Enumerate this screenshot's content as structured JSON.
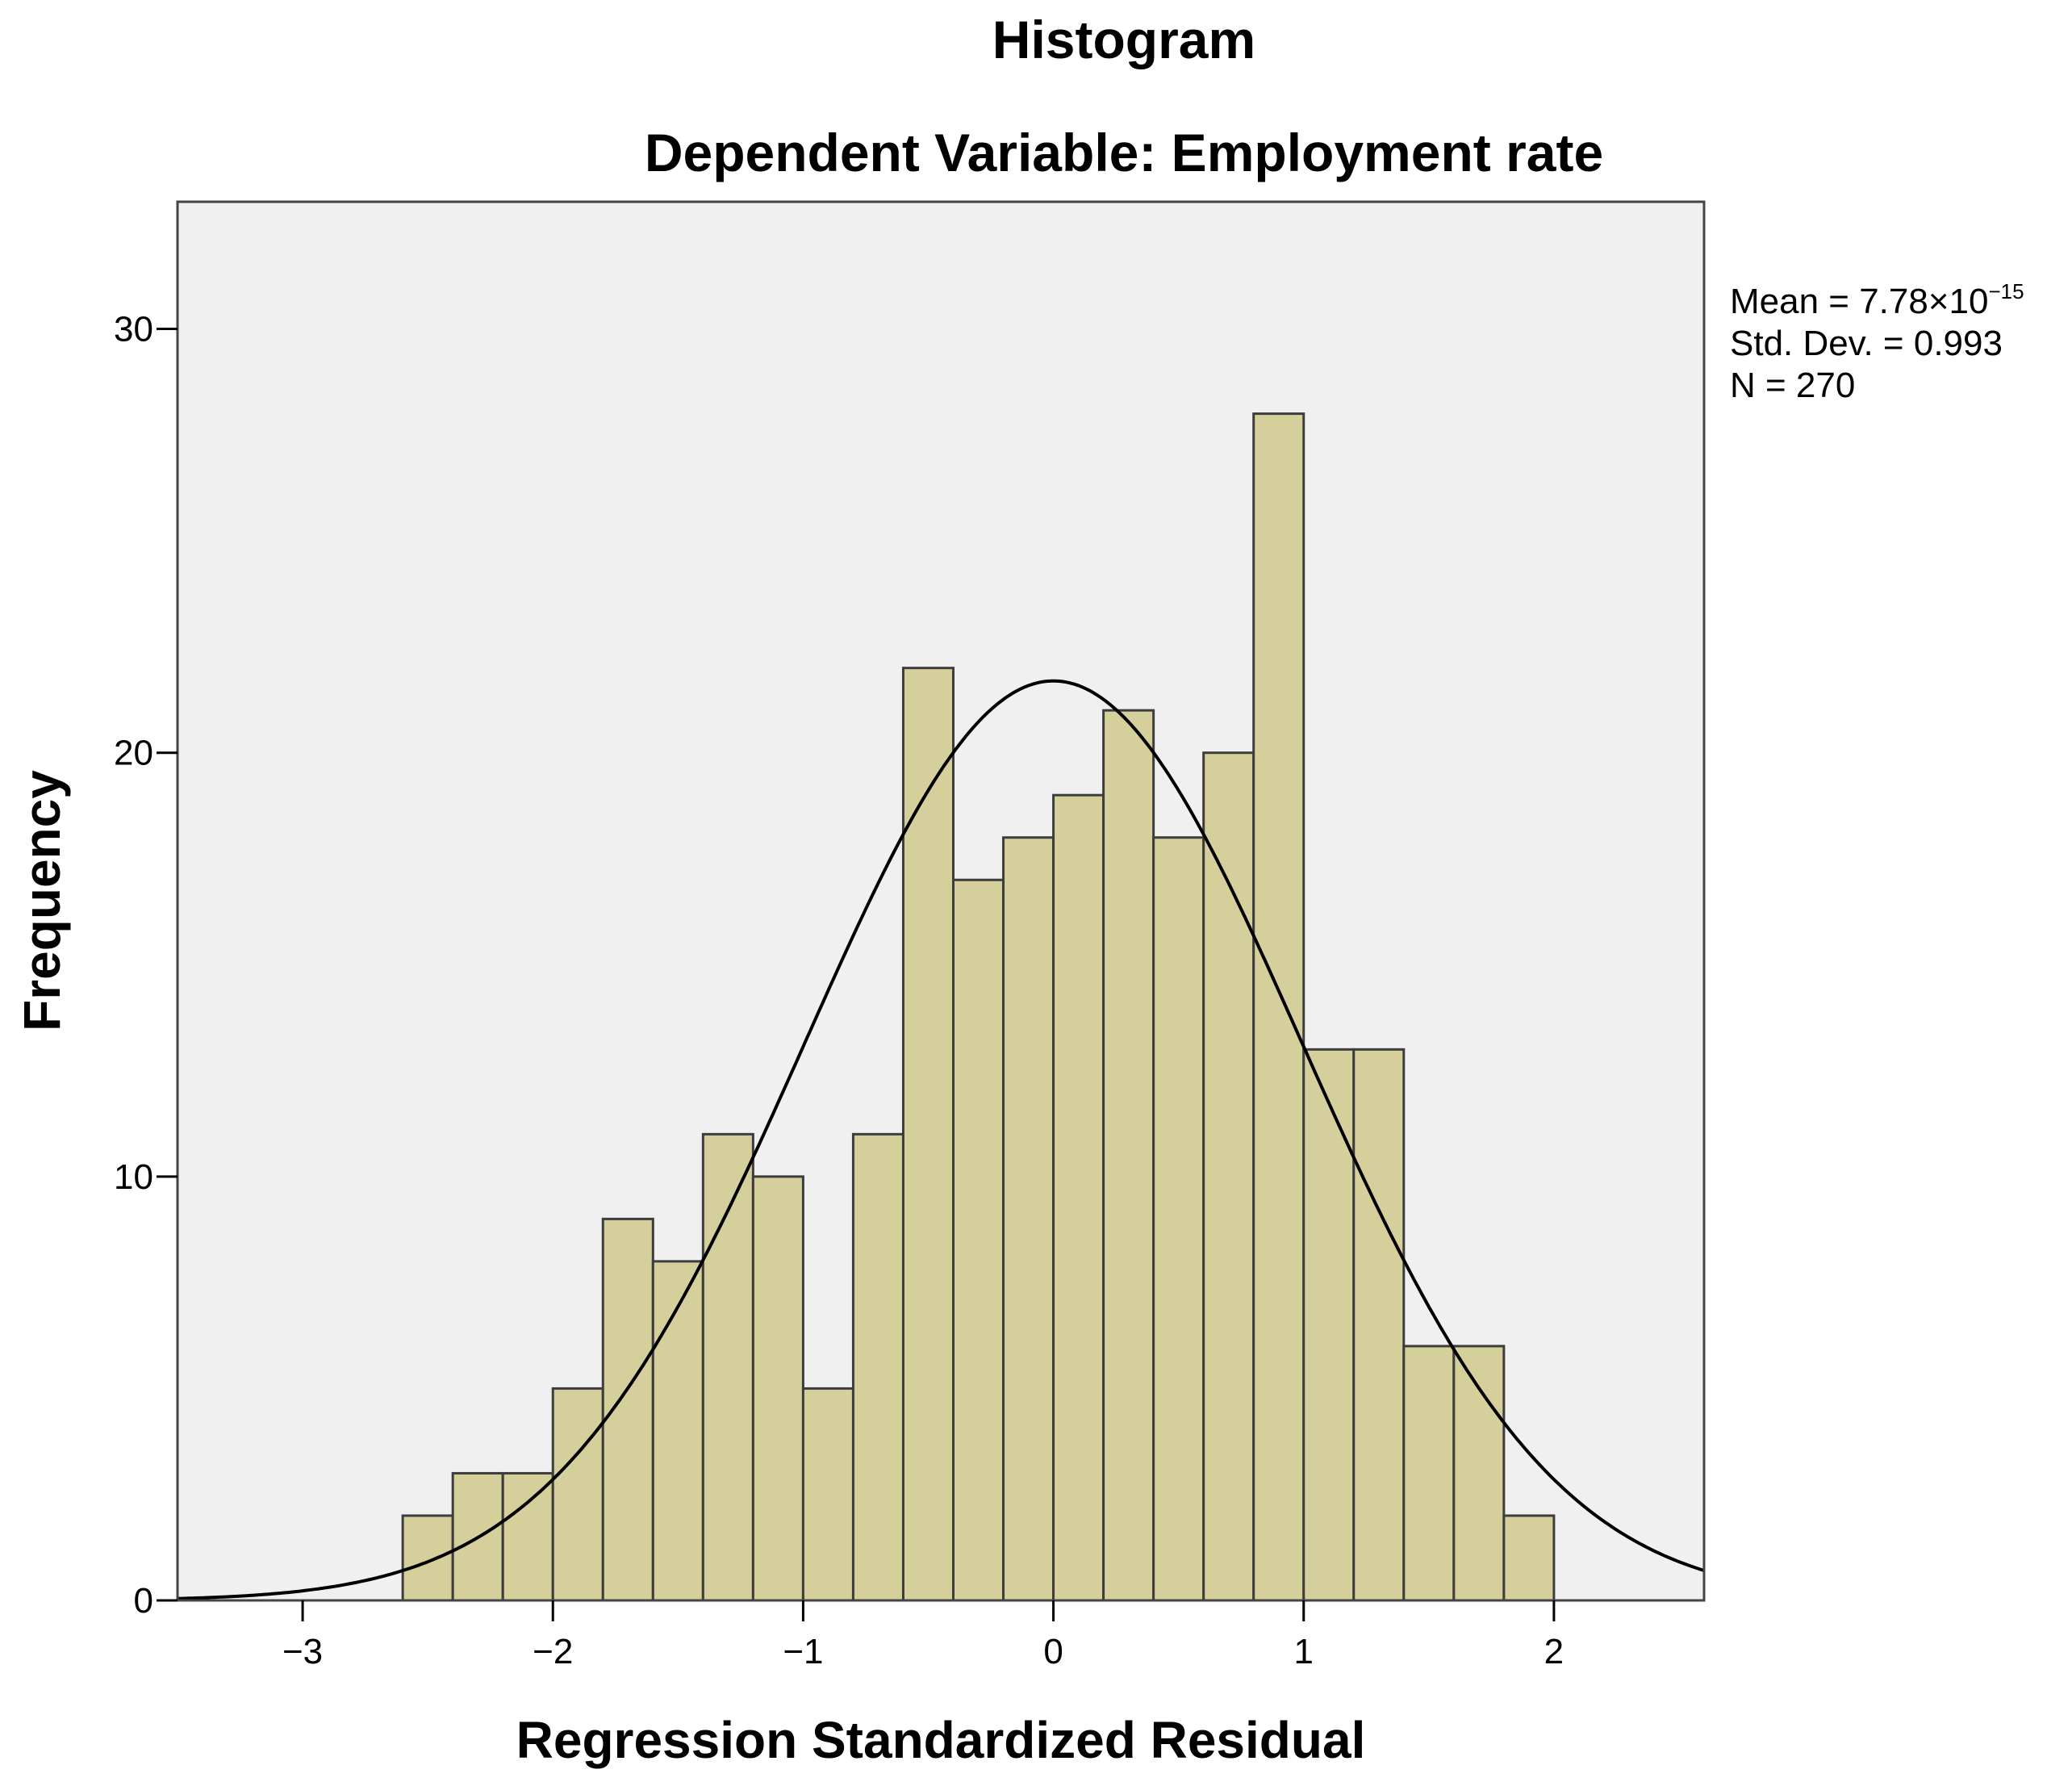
{
  "chart_data": {
    "type": "bar",
    "title": "Histogram",
    "subtitle": "Dependent Variable: Employment rate",
    "xlabel": "Regression Standardized Residual",
    "ylabel": "Frequency",
    "xlim": [
      -3.5,
      2.6
    ],
    "ylim": [
      0,
      33
    ],
    "x_ticks": [
      -3,
      -2,
      -1,
      0,
      1,
      2
    ],
    "x_tick_labels": [
      "−3",
      "−2",
      "−1",
      "0",
      "1",
      "2"
    ],
    "y_ticks": [
      0,
      10,
      20,
      30
    ],
    "y_tick_labels": [
      "0",
      "10",
      "20",
      "30"
    ],
    "bin_width": 0.2,
    "bins": [
      {
        "x0": -2.6,
        "count": 2
      },
      {
        "x0": -2.4,
        "count": 3
      },
      {
        "x0": -2.2,
        "count": 3
      },
      {
        "x0": -2.0,
        "count": 5
      },
      {
        "x0": -1.8,
        "count": 9
      },
      {
        "x0": -1.6,
        "count": 8
      },
      {
        "x0": -1.4,
        "count": 11
      },
      {
        "x0": -1.2,
        "count": 10
      },
      {
        "x0": -1.0,
        "count": 5
      },
      {
        "x0": -0.8,
        "count": 11
      },
      {
        "x0": -0.6,
        "count": 22
      },
      {
        "x0": -0.4,
        "count": 17
      },
      {
        "x0": -0.2,
        "count": 18
      },
      {
        "x0": 0.0,
        "count": 19
      },
      {
        "x0": 0.2,
        "count": 21
      },
      {
        "x0": 0.4,
        "count": 18
      },
      {
        "x0": 0.6,
        "count": 20
      },
      {
        "x0": 0.8,
        "count": 28
      },
      {
        "x0": 1.0,
        "count": 13
      },
      {
        "x0": 1.2,
        "count": 13
      },
      {
        "x0": 1.4,
        "count": 6
      },
      {
        "x0": 1.6,
        "count": 6
      },
      {
        "x0": 1.8,
        "count": 2
      }
    ],
    "normal_curve": {
      "mean": 0.0,
      "std": 0.993,
      "n": 270
    },
    "stats": {
      "mean_label": "Mean = 7.78×10",
      "mean_exponent": "−15",
      "std_label": "Std. Dev. = 0.993",
      "n_label": "N = 270"
    },
    "grid": false,
    "colors": {
      "bar_fill": "#d5cf9b",
      "bar_stroke": "#3d3d3d",
      "plot_bg": "#f0f0f0",
      "curve": "#000000",
      "frame": "#444444"
    }
  }
}
